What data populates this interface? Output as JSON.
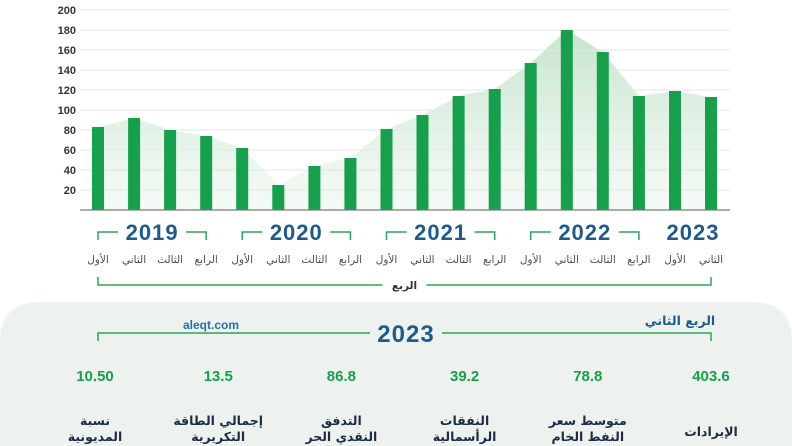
{
  "chart_data": {
    "type": "bar",
    "xlabel": "الربع",
    "ylim": [
      0,
      200
    ],
    "yticks": [
      20,
      40,
      60,
      80,
      100,
      120,
      140,
      160,
      180,
      200
    ],
    "grid": true,
    "area_fill": true,
    "groups": [
      {
        "year": "2019",
        "categories": [
          "الأول",
          "الثاني",
          "الثالث",
          "الرابع"
        ],
        "values": [
          83,
          92,
          80,
          74
        ]
      },
      {
        "year": "2020",
        "categories": [
          "الأول",
          "الثاني",
          "الثالث",
          "الرابع"
        ],
        "values": [
          62,
          25,
          44,
          52
        ]
      },
      {
        "year": "2021",
        "categories": [
          "الأول",
          "الثاني",
          "الثالث",
          "الرابع"
        ],
        "values": [
          81,
          95,
          114,
          121
        ]
      },
      {
        "year": "2022",
        "categories": [
          "الأول",
          "الثاني",
          "الثالث",
          "الرابع"
        ],
        "values": [
          147,
          180,
          158,
          114
        ]
      },
      {
        "year": "2023",
        "categories": [
          "الأول",
          "الثاني"
        ],
        "values": [
          119,
          113
        ]
      }
    ]
  },
  "colors": {
    "bar": "#17a04b",
    "accent": "#1e5b8c",
    "bracket": "#2aa55a",
    "value": "#17a04b",
    "label": "#1b2c45",
    "panel": "#eef2ef",
    "link": "#2a6fa8"
  },
  "summary": {
    "source": "aleqt.com",
    "year": "2023",
    "period": "الربع الثاني",
    "metrics": [
      {
        "value": "403.6",
        "label_lines": [
          "الإيرادات"
        ]
      },
      {
        "value": "78.8",
        "label_lines": [
          "متوسط سعر",
          "النفط الخام"
        ]
      },
      {
        "value": "39.2",
        "label_lines": [
          "النفقات",
          "الرأسمالية"
        ]
      },
      {
        "value": "86.8",
        "label_lines": [
          "التدفق",
          "النقدي الحر"
        ]
      },
      {
        "value": "13.5",
        "label_lines": [
          "إجمالي الطاقة",
          "التكريرية"
        ]
      },
      {
        "value": "10.50",
        "label_lines": [
          "نسبة",
          "المديونية"
        ]
      }
    ]
  }
}
